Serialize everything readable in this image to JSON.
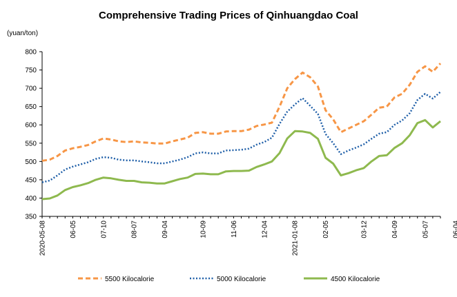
{
  "chart_data": {
    "type": "line",
    "title": "Comprehensive Trading Prices of Qinhuangdao Coal",
    "ylabel": "(yuan/ton)",
    "xlabel": "",
    "ylim": [
      350,
      800
    ],
    "yticks": [
      350,
      400,
      450,
      500,
      550,
      600,
      650,
      700,
      750,
      800
    ],
    "grid": false,
    "legend_position": "bottom",
    "x_tick_labels": [
      {
        "index": 0,
        "label": "2020-05-08"
      },
      {
        "index": 4,
        "label": "06-05"
      },
      {
        "index": 8,
        "label": "07-10"
      },
      {
        "index": 12,
        "label": "08-07"
      },
      {
        "index": 16,
        "label": "09-04"
      },
      {
        "index": 21,
        "label": "10-09"
      },
      {
        "index": 25,
        "label": "11-06"
      },
      {
        "index": 29,
        "label": "12-04"
      },
      {
        "index": 33,
        "label": "2021-01-08"
      },
      {
        "index": 37,
        "label": "02-05"
      },
      {
        "index": 42,
        "label": "03-12"
      },
      {
        "index": 46,
        "label": "04-09"
      },
      {
        "index": 50,
        "label": "05-07"
      },
      {
        "index": 54,
        "label": "06-04"
      }
    ],
    "series": [
      {
        "name": "5500 Kilocalorie",
        "color": "#F79646",
        "dash": "dashed",
        "values": [
          502,
          505,
          515,
          530,
          536,
          540,
          545,
          555,
          563,
          560,
          555,
          553,
          555,
          552,
          551,
          549,
          549,
          555,
          560,
          565,
          578,
          580,
          576,
          576,
          582,
          583,
          583,
          587,
          597,
          601,
          606,
          650,
          700,
          725,
          743,
          730,
          705,
          640,
          615,
          580,
          590,
          600,
          610,
          628,
          647,
          650,
          675,
          685,
          710,
          745,
          760,
          745,
          768
        ]
      },
      {
        "name": "5000 Kilocalorie",
        "color": "#1F5FA8",
        "dash": "dotted",
        "values": [
          443,
          448,
          462,
          478,
          486,
          492,
          498,
          507,
          512,
          510,
          505,
          503,
          503,
          500,
          498,
          495,
          495,
          500,
          505,
          512,
          522,
          525,
          522,
          522,
          530,
          531,
          532,
          535,
          546,
          553,
          565,
          603,
          636,
          656,
          673,
          652,
          630,
          575,
          550,
          520,
          530,
          538,
          547,
          562,
          576,
          580,
          600,
          612,
          632,
          668,
          685,
          672,
          690
        ]
      },
      {
        "name": "4500 Kilocalorie",
        "color": "#8EB94E",
        "dash": "solid",
        "values": [
          397,
          399,
          407,
          422,
          430,
          435,
          441,
          450,
          456,
          454,
          450,
          447,
          447,
          443,
          442,
          440,
          440,
          446,
          452,
          456,
          466,
          467,
          465,
          465,
          473,
          474,
          474,
          475,
          485,
          492,
          500,
          523,
          563,
          583,
          582,
          578,
          562,
          510,
          494,
          462,
          468,
          476,
          482,
          500,
          515,
          517,
          537,
          550,
          572,
          605,
          613,
          593,
          610
        ]
      }
    ]
  }
}
